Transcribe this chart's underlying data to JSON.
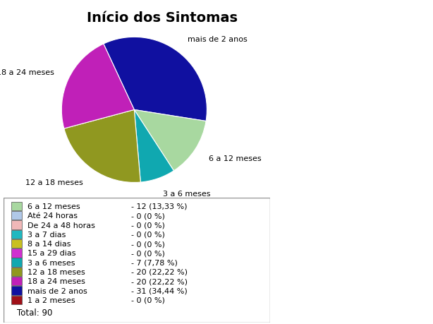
{
  "title": "Início dos Sintomas",
  "slices": [
    {
      "label": "6 a 12 meses",
      "value": 12,
      "color": "#a8d8a0",
      "pct": "13,33 %"
    },
    {
      "label": "Até 24 horas",
      "value": 0,
      "color": "#b0c8e8",
      "pct": "0 %"
    },
    {
      "label": "De 24 a 48 horas",
      "value": 0,
      "color": "#f0b8b8",
      "pct": "0 %"
    },
    {
      "label": "3 a 7 dias",
      "value": 0,
      "color": "#20b8c0",
      "pct": "0 %"
    },
    {
      "label": "8 a 14 dias",
      "value": 0,
      "color": "#c8c020",
      "pct": "0 %"
    },
    {
      "label": "15 a 29 dias",
      "value": 0,
      "color": "#d030d0",
      "pct": "0 %"
    },
    {
      "label": "3 a 6 meses",
      "value": 7,
      "color": "#10a8b0",
      "pct": "7,78 %"
    },
    {
      "label": "12 a 18 meses",
      "value": 20,
      "color": "#909820",
      "pct": "22,22 %"
    },
    {
      "label": "18 a 24 meses",
      "value": 20,
      "color": "#c020b8",
      "pct": "22,22 %"
    },
    {
      "label": "mais de 2 anos",
      "value": 31,
      "color": "#1010a0",
      "pct": "34,44 %"
    },
    {
      "label": "1 a 2 meses",
      "value": 0,
      "color": "#a01018",
      "pct": "0 %"
    }
  ],
  "total": 90,
  "ordered_vals": [
    31,
    12,
    7,
    20,
    20
  ],
  "ordered_colors": [
    "#1010a0",
    "#a8d8a0",
    "#10a8b0",
    "#909820",
    "#c020b8"
  ],
  "ordered_labels": [
    "mais de 2 anos",
    "6 a 12 meses",
    "3 a 6 meses",
    "12 a 18 meses",
    "18 a 24 meses"
  ],
  "startangle": 115,
  "bg_color": "#ffffff",
  "legend_border_color": "#909090",
  "title_fontsize": 14,
  "label_fontsize": 8,
  "legend_fontsize": 8
}
